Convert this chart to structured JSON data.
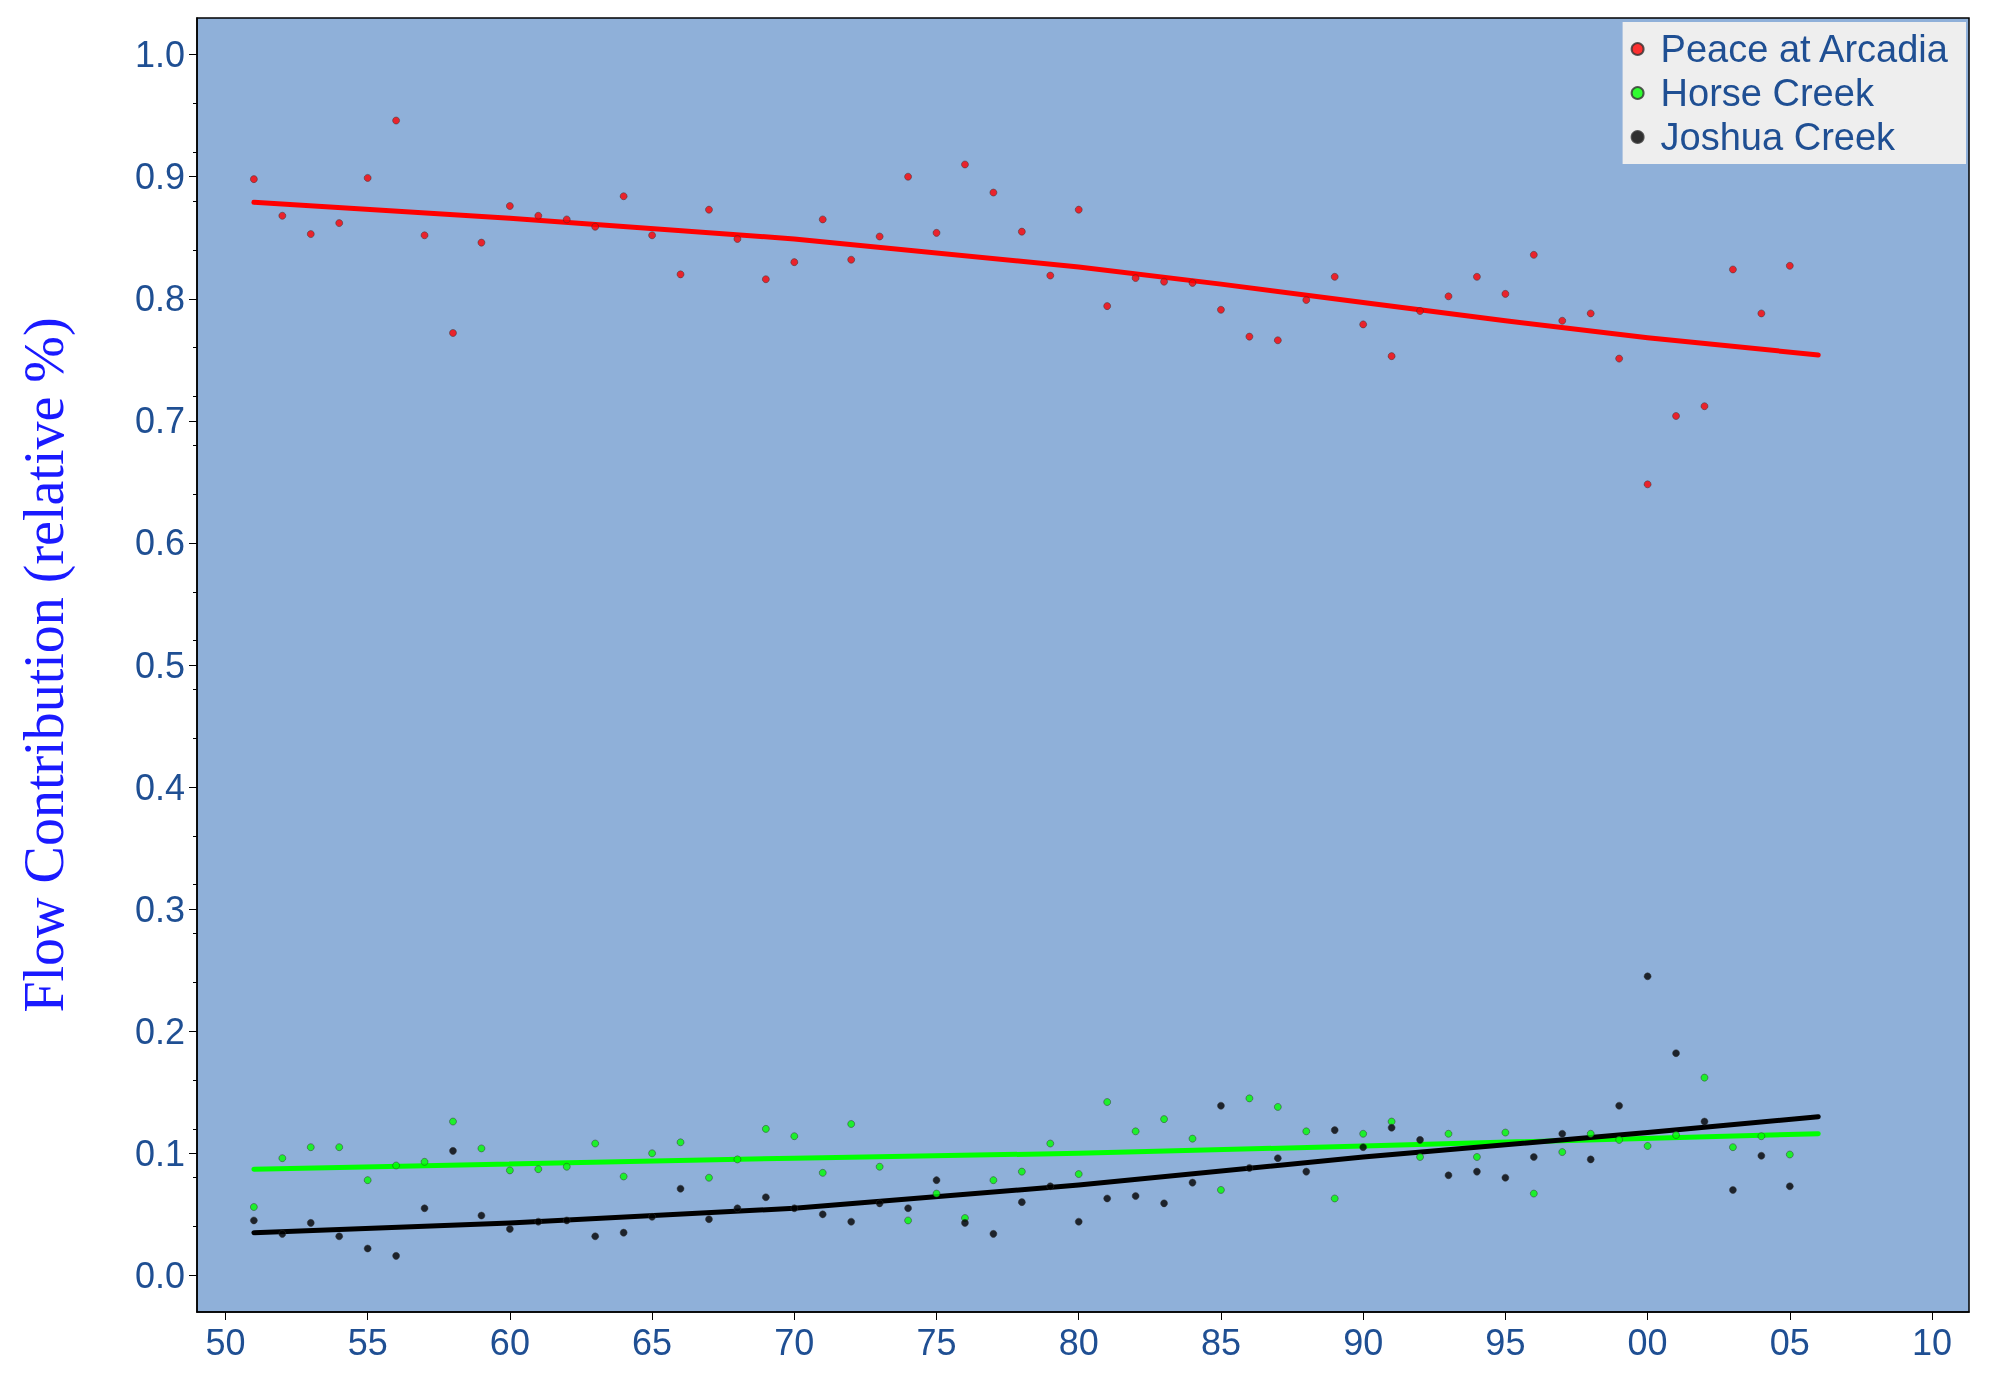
{
  "chart_data": {
    "type": "scatter",
    "ylabel": "Flow Contribution (relative %)",
    "xlim": [
      1949,
      2011.3
    ],
    "ylim": [
      -0.03,
      1.03
    ],
    "xticks": [
      {
        "value": 1950,
        "label": "50"
      },
      {
        "value": 1955,
        "label": "55"
      },
      {
        "value": 1960,
        "label": "60"
      },
      {
        "value": 1965,
        "label": "65"
      },
      {
        "value": 1970,
        "label": "70"
      },
      {
        "value": 1975,
        "label": "75"
      },
      {
        "value": 1980,
        "label": "80"
      },
      {
        "value": 1985,
        "label": "85"
      },
      {
        "value": 1990,
        "label": "90"
      },
      {
        "value": 1995,
        "label": "95"
      },
      {
        "value": 2000,
        "label": "00"
      },
      {
        "value": 2005,
        "label": "05"
      },
      {
        "value": 2010,
        "label": "10"
      }
    ],
    "yticks": [
      {
        "value": 0,
        "label": "0.0"
      },
      {
        "value": 0.1,
        "label": "0.1"
      },
      {
        "value": 0.2,
        "label": "0.2"
      },
      {
        "value": 0.3,
        "label": "0.3"
      },
      {
        "value": 0.4,
        "label": "0.4"
      },
      {
        "value": 0.5,
        "label": "0.5"
      },
      {
        "value": 0.6,
        "label": "0.6"
      },
      {
        "value": 0.7,
        "label": "0.7"
      },
      {
        "value": 0.8,
        "label": "0.8"
      },
      {
        "value": 0.9,
        "label": "0.9"
      },
      {
        "value": 1,
        "label": "1.0"
      }
    ],
    "grid": false,
    "legend": "top right",
    "marker": "circle",
    "x": [
      1951,
      1952,
      1953,
      1954,
      1955,
      1956,
      1957,
      1958,
      1959,
      1960,
      1961,
      1962,
      1963,
      1964,
      1965,
      1966,
      1967,
      1968,
      1969,
      1970,
      1971,
      1972,
      1973,
      1974,
      1975,
      1976,
      1977,
      1978,
      1979,
      1980,
      1981,
      1982,
      1983,
      1984,
      1985,
      1986,
      1987,
      1988,
      1989,
      1990,
      1991,
      1992,
      1993,
      1994,
      1995,
      1996,
      1997,
      1998,
      1999,
      2000,
      2001,
      2002,
      2003,
      2004,
      2005
    ],
    "series": [
      {
        "name": "Peace at Arcadia",
        "color": "#ff0000",
        "values": [
          0.898,
          0.868,
          0.853,
          0.862,
          0.899,
          0.946,
          0.852,
          0.772,
          0.846,
          0.876,
          0.868,
          0.865,
          0.859,
          0.884,
          0.852,
          0.82,
          0.873,
          0.849,
          0.816,
          0.83,
          0.865,
          0.832,
          0.851,
          0.9,
          0.854,
          0.91,
          0.887,
          0.855,
          0.819,
          0.873,
          0.794,
          0.817,
          0.814,
          0.813,
          0.791,
          0.769,
          0.766,
          0.799,
          0.818,
          0.779,
          0.753,
          0.79,
          0.802,
          0.818,
          0.804,
          0.836,
          0.782,
          0.788,
          0.751,
          0.648,
          0.704,
          0.712,
          0.824,
          0.788,
          0.827
        ]
      },
      {
        "name": "Horse Creek",
        "color": "#00ff00",
        "values": [
          0.056,
          0.096,
          0.105,
          0.105,
          0.078,
          0.09,
          0.093,
          0.126,
          0.104,
          0.086,
          0.087,
          0.089,
          0.108,
          0.081,
          0.1,
          0.109,
          0.08,
          0.095,
          0.12,
          0.114,
          0.084,
          0.124,
          0.089,
          0.045,
          0.067,
          0.047,
          0.078,
          0.085,
          0.108,
          0.083,
          0.142,
          0.118,
          0.128,
          0.112,
          0.07,
          0.145,
          0.138,
          0.118,
          0.063,
          0.116,
          0.126,
          0.097,
          0.116,
          0.097,
          0.117,
          0.067,
          0.101,
          0.116,
          0.111,
          0.106,
          0.115,
          0.162,
          0.105,
          0.114,
          0.099
        ]
      },
      {
        "name": "Joshua Creek",
        "color": "#000000",
        "values": [
          0.045,
          0.034,
          0.043,
          0.032,
          0.022,
          0.016,
          0.055,
          0.102,
          0.049,
          0.038,
          0.044,
          0.045,
          0.032,
          0.035,
          0.048,
          0.071,
          0.046,
          0.055,
          0.064,
          0.055,
          0.05,
          0.044,
          0.059,
          0.055,
          0.078,
          0.043,
          0.034,
          0.06,
          0.073,
          0.044,
          0.063,
          0.065,
          0.059,
          0.076,
          0.139,
          0.088,
          0.096,
          0.085,
          0.119,
          0.105,
          0.121,
          0.111,
          0.082,
          0.085,
          0.08,
          0.097,
          0.116,
          0.095,
          0.139,
          0.245,
          0.182,
          0.126,
          0.07,
          0.098,
          0.073
        ]
      },
      {
        "type": "line",
        "marker": "none",
        "color": "#ff0000",
        "x": [
          1951,
          1960,
          1970,
          1980,
          1985,
          1990,
          1995,
          2000,
          2006
        ],
        "values": [
          0.879,
          0.866,
          0.849,
          0.826,
          0.812,
          0.797,
          0.782,
          0.768,
          0.754
        ]
      },
      {
        "type": "line",
        "marker": "none",
        "color": "#00ff00",
        "x": [
          1951,
          1970,
          1980,
          1990,
          2006
        ],
        "values": [
          0.087,
          0.096,
          0.1,
          0.106,
          0.116
        ]
      },
      {
        "type": "line",
        "marker": "none",
        "color": "#000000",
        "x": [
          1951,
          1960,
          1970,
          1980,
          1990,
          2000,
          2006
        ],
        "values": [
          0.035,
          0.043,
          0.055,
          0.074,
          0.097,
          0.117,
          0.13
        ]
      }
    ]
  }
}
